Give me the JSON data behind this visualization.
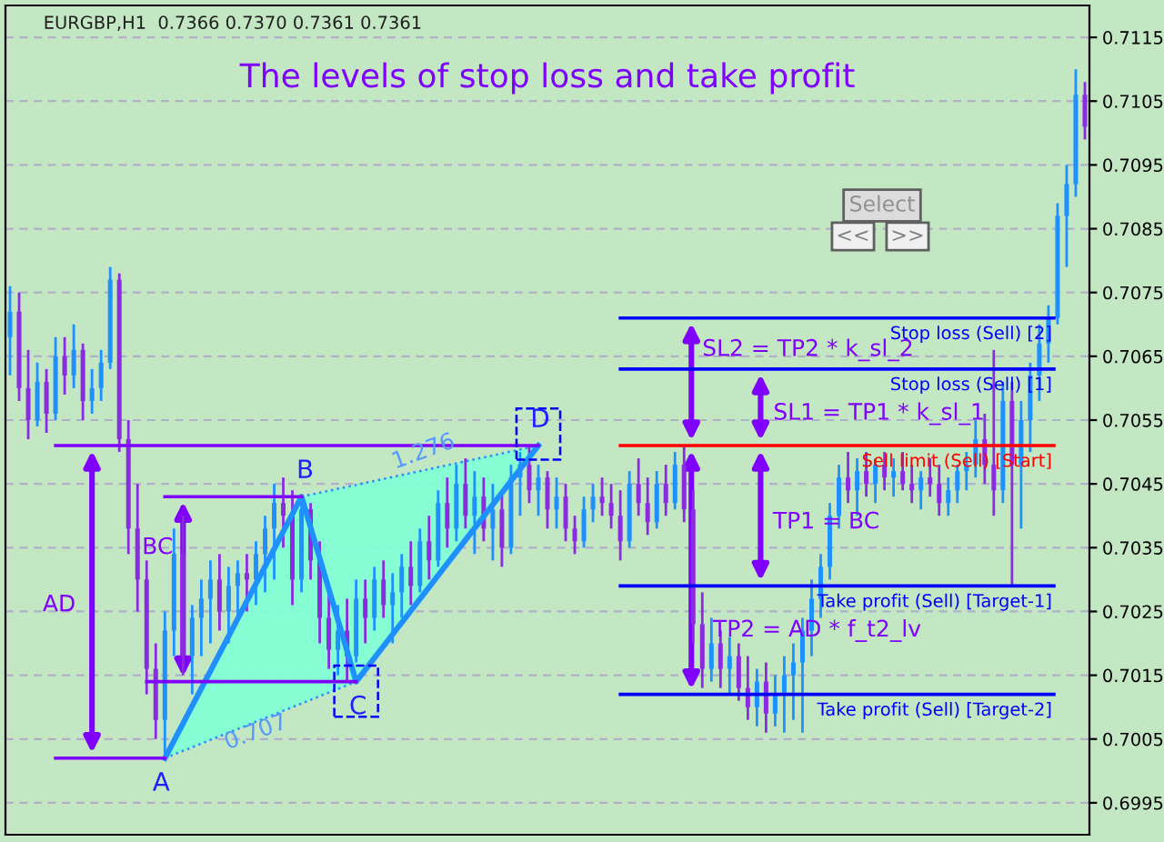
{
  "chart_data": {
    "type": "candlestick",
    "title": "The levels of stop loss and take profit",
    "categories": [
      null,
      null,
      null,
      null,
      null,
      null,
      null,
      null,
      null,
      null,
      null,
      null,
      null,
      null,
      null,
      null,
      null,
      null,
      null,
      null,
      null,
      null,
      null,
      null,
      null,
      null,
      null,
      null,
      null,
      null,
      null,
      null,
      null,
      null,
      null,
      null,
      null,
      null,
      null,
      null,
      null,
      null,
      null,
      null,
      null,
      null,
      null,
      null,
      null,
      null,
      null,
      null,
      null,
      null,
      null,
      null,
      null,
      null,
      null,
      null,
      null,
      null,
      null,
      null,
      null,
      null,
      null,
      null,
      null,
      null,
      null,
      null,
      null,
      null,
      null,
      null,
      null,
      null,
      null,
      null,
      null,
      null,
      null,
      null,
      null,
      null,
      null,
      null,
      null,
      null,
      null,
      null,
      null,
      null,
      null,
      null,
      null,
      null,
      null,
      null,
      null,
      null,
      null,
      null,
      null,
      null,
      null,
      null,
      null,
      null,
      null,
      null,
      null,
      null,
      null,
      null,
      null,
      null,
      null
    ],
    "ohlc": [
      [
        0.7068,
        0.7076,
        0.7062,
        0.7072
      ],
      [
        0.7072,
        0.7075,
        0.7058,
        0.706
      ],
      [
        0.706,
        0.7066,
        0.7052,
        0.7055
      ],
      [
        0.7055,
        0.7064,
        0.7054,
        0.7061
      ],
      [
        0.7061,
        0.7063,
        0.7053,
        0.7056
      ],
      [
        0.7056,
        0.7068,
        0.7055,
        0.7065
      ],
      [
        0.7065,
        0.7068,
        0.7059,
        0.7062
      ],
      [
        0.7062,
        0.707,
        0.706,
        0.7066
      ],
      [
        0.7066,
        0.7067,
        0.7055,
        0.7058
      ],
      [
        0.7058,
        0.7063,
        0.7056,
        0.706
      ],
      [
        0.706,
        0.7066,
        0.7058,
        0.7064
      ],
      [
        0.7064,
        0.7079,
        0.7063,
        0.7077
      ],
      [
        0.7077,
        0.7078,
        0.705,
        0.7052
      ],
      [
        0.7052,
        0.7055,
        0.7034,
        0.7038
      ],
      [
        0.7038,
        0.7045,
        0.7025,
        0.703
      ],
      [
        0.703,
        0.7033,
        0.7012,
        0.7016
      ],
      [
        0.7016,
        0.702,
        0.7005,
        0.7008
      ],
      [
        0.7008,
        0.7025,
        0.7002,
        0.7022
      ],
      [
        0.7022,
        0.7038,
        0.7018,
        0.7034
      ],
      [
        0.7034,
        0.704,
        0.7015,
        0.7018
      ],
      [
        0.7018,
        0.7026,
        0.7012,
        0.7024
      ],
      [
        0.7024,
        0.703,
        0.7018,
        0.7027
      ],
      [
        0.7027,
        0.7033,
        0.702,
        0.703
      ],
      [
        0.703,
        0.7034,
        0.7022,
        0.7025
      ],
      [
        0.7025,
        0.7032,
        0.702,
        0.7029
      ],
      [
        0.7029,
        0.7033,
        0.7024,
        0.7031
      ],
      [
        0.7031,
        0.7034,
        0.7025,
        0.703
      ],
      [
        0.703,
        0.7036,
        0.7026,
        0.7034
      ],
      [
        0.7034,
        0.704,
        0.7028,
        0.7038
      ],
      [
        0.7038,
        0.7045,
        0.703,
        0.7042
      ],
      [
        0.7042,
        0.7046,
        0.7035,
        0.704
      ],
      [
        0.704,
        0.7044,
        0.7026,
        0.703
      ],
      [
        0.703,
        0.7043,
        0.7028,
        0.7041
      ],
      [
        0.7041,
        0.7042,
        0.703,
        0.7033
      ],
      [
        0.7033,
        0.7036,
        0.702,
        0.7024
      ],
      [
        0.7024,
        0.7028,
        0.7016,
        0.7019
      ],
      [
        0.7019,
        0.7026,
        0.7015,
        0.7022
      ],
      [
        0.7022,
        0.7027,
        0.7014,
        0.7018
      ],
      [
        0.7018,
        0.703,
        0.7017,
        0.7027
      ],
      [
        0.7027,
        0.703,
        0.702,
        0.7024
      ],
      [
        0.7024,
        0.7032,
        0.7022,
        0.703
      ],
      [
        0.703,
        0.7033,
        0.7024,
        0.7026
      ],
      [
        0.7026,
        0.7031,
        0.702,
        0.7028
      ],
      [
        0.7028,
        0.7034,
        0.7024,
        0.7032
      ],
      [
        0.7032,
        0.7036,
        0.7026,
        0.7029
      ],
      [
        0.7029,
        0.7038,
        0.7028,
        0.7036
      ],
      [
        0.7036,
        0.704,
        0.703,
        0.7033
      ],
      [
        0.7033,
        0.7044,
        0.7032,
        0.7042
      ],
      [
        0.7042,
        0.7046,
        0.7035,
        0.7038
      ],
      [
        0.7038,
        0.7048,
        0.7036,
        0.7045
      ],
      [
        0.7045,
        0.7049,
        0.7038,
        0.704
      ],
      [
        0.704,
        0.7047,
        0.7034,
        0.7043
      ],
      [
        0.7043,
        0.7046,
        0.7036,
        0.7038
      ],
      [
        0.7038,
        0.7045,
        0.7033,
        0.7041
      ],
      [
        0.7041,
        0.7044,
        0.7032,
        0.7035
      ],
      [
        0.7035,
        0.7048,
        0.7034,
        0.7046
      ],
      [
        0.7046,
        0.705,
        0.704,
        0.7048
      ],
      [
        0.7048,
        0.7051,
        0.7042,
        0.7044
      ],
      [
        0.7044,
        0.7048,
        0.704,
        0.7046
      ],
      [
        0.7046,
        0.7047,
        0.7038,
        0.7041
      ],
      [
        0.7041,
        0.7046,
        0.7038,
        0.7043
      ],
      [
        0.7043,
        0.7045,
        0.7036,
        0.7038
      ],
      [
        0.7038,
        0.704,
        0.7034,
        0.7036
      ],
      [
        0.7036,
        0.7043,
        0.7035,
        0.7041
      ],
      [
        0.7041,
        0.7045,
        0.7039,
        0.7043
      ],
      [
        0.7043,
        0.7046,
        0.704,
        0.7042
      ],
      [
        0.7042,
        0.7045,
        0.7038,
        0.704
      ],
      [
        0.704,
        0.7044,
        0.7033,
        0.7036
      ],
      [
        0.7036,
        0.7047,
        0.7035,
        0.7045
      ],
      [
        0.7045,
        0.7049,
        0.704,
        0.7042
      ],
      [
        0.7042,
        0.7046,
        0.7037,
        0.7039
      ],
      [
        0.7039,
        0.7047,
        0.7038,
        0.7045
      ],
      [
        0.7045,
        0.7048,
        0.704,
        0.7042
      ],
      [
        0.7042,
        0.705,
        0.7041,
        0.7048
      ],
      [
        0.7048,
        0.7051,
        0.7039,
        0.7041
      ],
      [
        0.7041,
        0.7044,
        0.702,
        0.7023
      ],
      [
        0.7023,
        0.7028,
        0.7013,
        0.7016
      ],
      [
        0.7016,
        0.7024,
        0.7014,
        0.702
      ],
      [
        0.702,
        0.7022,
        0.7013,
        0.7016
      ],
      [
        0.7016,
        0.7021,
        0.7012,
        0.7018
      ],
      [
        0.7018,
        0.702,
        0.7011,
        0.7013
      ],
      [
        0.7013,
        0.7018,
        0.7008,
        0.701
      ],
      [
        0.701,
        0.7016,
        0.7007,
        0.7014
      ],
      [
        0.7014,
        0.7017,
        0.7006,
        0.7009
      ],
      [
        0.7009,
        0.7015,
        0.7007,
        0.7012
      ],
      [
        0.7012,
        0.7018,
        0.7006,
        0.7015
      ],
      [
        0.7015,
        0.702,
        0.7008,
        0.7017
      ],
      [
        0.7017,
        0.7024,
        0.7006,
        0.7022
      ],
      [
        0.7022,
        0.703,
        0.7018,
        0.7027
      ],
      [
        0.7027,
        0.7034,
        0.7024,
        0.7032
      ],
      [
        0.7032,
        0.7042,
        0.703,
        0.704
      ],
      [
        0.704,
        0.7048,
        0.7038,
        0.7046
      ],
      [
        0.7046,
        0.705,
        0.7042,
        0.7044
      ],
      [
        0.7044,
        0.7049,
        0.704,
        0.7047
      ],
      [
        0.7047,
        0.705,
        0.7043,
        0.7045
      ],
      [
        0.7045,
        0.7049,
        0.7042,
        0.7048
      ],
      [
        0.7048,
        0.705,
        0.7044,
        0.7046
      ],
      [
        0.7046,
        0.7049,
        0.7043,
        0.7047
      ],
      [
        0.7047,
        0.705,
        0.7044,
        0.7045
      ],
      [
        0.7045,
        0.7048,
        0.7042,
        0.7044
      ],
      [
        0.7044,
        0.7047,
        0.7041,
        0.7046
      ],
      [
        0.7046,
        0.7049,
        0.7043,
        0.7045
      ],
      [
        0.7045,
        0.7048,
        0.704,
        0.7042
      ],
      [
        0.7042,
        0.7046,
        0.704,
        0.7044
      ],
      [
        0.7044,
        0.7048,
        0.7042,
        0.7047
      ],
      [
        0.7047,
        0.705,
        0.7044,
        0.7048
      ],
      [
        0.7048,
        0.7055,
        0.7046,
        0.7052
      ],
      [
        0.7052,
        0.7056,
        0.7045,
        0.7048
      ],
      [
        0.7048,
        0.7066,
        0.704,
        0.7044
      ],
      [
        0.7044,
        0.7061,
        0.7042,
        0.7058
      ],
      [
        0.7058,
        0.7061,
        0.7029,
        0.7048
      ],
      [
        0.7048,
        0.7058,
        0.7038,
        0.7055
      ],
      [
        0.7055,
        0.7064,
        0.705,
        0.7062
      ],
      [
        0.7062,
        0.707,
        0.7058,
        0.7067
      ],
      [
        0.7067,
        0.7073,
        0.7064,
        0.7071
      ],
      [
        0.7071,
        0.7089,
        0.707,
        0.7087
      ],
      [
        0.7087,
        0.7095,
        0.7079,
        0.7092
      ],
      [
        0.7092,
        0.711,
        0.709,
        0.7106
      ],
      [
        0.7106,
        0.7108,
        0.7099,
        0.7101
      ]
    ],
    "series": [
      {
        "type": "line",
        "color": "#1e90ff",
        "values": [
          null,
          null,
          null,
          null,
          null,
          null,
          null,
          null,
          null,
          null,
          null,
          null,
          null,
          null,
          null,
          null,
          null,
          0.7002,
          null,
          null,
          null,
          null,
          null,
          null,
          null,
          null,
          null,
          null,
          null,
          null,
          null,
          null,
          0.7043,
          null,
          null,
          null,
          null,
          null,
          0.7014,
          null,
          null,
          null,
          null,
          null,
          null,
          null,
          null,
          null,
          null,
          null,
          null,
          null,
          null,
          null,
          null,
          null,
          null,
          null,
          0.7051,
          null,
          null,
          null,
          null,
          null,
          null,
          null,
          null,
          null,
          null,
          null,
          null,
          null,
          null,
          null,
          null,
          null,
          null,
          null,
          null,
          null,
          null,
          null,
          null,
          null,
          null,
          null,
          null,
          null,
          null,
          null,
          null,
          null,
          null,
          null,
          null,
          null,
          null,
          null,
          null,
          null,
          null,
          null,
          null,
          null,
          null,
          null,
          null,
          null,
          null,
          null,
          null,
          null,
          null,
          null,
          null,
          null,
          null,
          null,
          null
        ]
      },
      {
        "type": "line",
        "color": "#8000ff",
        "values": [
          null,
          null,
          null,
          null,
          null,
          0.7051,
          null,
          null,
          null,
          null,
          null,
          null,
          null,
          null,
          null,
          null,
          null,
          null,
          null,
          null,
          null,
          null,
          null,
          null,
          null,
          null,
          null,
          null,
          null,
          null,
          null,
          null,
          null,
          null,
          null,
          null,
          null,
          null,
          null,
          null,
          null,
          null,
          null,
          null,
          null,
          null,
          null,
          null,
          null,
          null,
          null,
          null,
          null,
          null,
          null,
          null,
          null,
          null,
          0.7051,
          null,
          null,
          null,
          null,
          null,
          null,
          null,
          null,
          null,
          null,
          null,
          null,
          null,
          null,
          null,
          null,
          null,
          null,
          null,
          null,
          null,
          null,
          null,
          null,
          null,
          null,
          null,
          null,
          null,
          null,
          null,
          null,
          null,
          null,
          null,
          null,
          null,
          null,
          null,
          null,
          null,
          null,
          null,
          null,
          null,
          null,
          null,
          null,
          null,
          null,
          null,
          null,
          null,
          null,
          null,
          null,
          null,
          null,
          null,
          null
        ]
      },
      {
        "type": "line",
        "color": "#8000ff",
        "values": [
          null,
          null,
          null,
          null,
          null,
          0.7002,
          null,
          null,
          null,
          null,
          null,
          null,
          null,
          null,
          null,
          null,
          null,
          0.7002,
          null,
          null,
          null,
          null,
          null,
          null,
          null,
          null,
          null,
          null,
          null,
          null,
          null,
          null,
          null,
          null,
          null,
          null,
          null,
          null,
          null,
          null,
          null,
          null,
          null,
          null,
          null,
          null,
          null,
          null,
          null,
          null,
          null,
          null,
          null,
          null,
          null,
          null,
          null,
          null,
          null,
          null,
          null,
          null,
          null,
          null,
          null,
          null,
          null,
          null,
          null,
          null,
          null,
          null,
          null,
          null,
          null,
          null,
          null,
          null,
          null,
          null,
          null,
          null,
          null,
          null,
          null,
          null,
          null,
          null,
          null,
          null,
          null,
          null,
          null,
          null,
          null,
          null,
          null,
          null,
          null,
          null,
          null,
          null,
          null,
          null,
          null,
          null,
          null,
          null,
          null,
          null,
          null,
          null,
          null,
          null,
          null,
          null,
          null,
          null,
          null
        ]
      },
      {
        "type": "line",
        "color": "#8000ff",
        "values": [
          null,
          null,
          null,
          null,
          null,
          null,
          null,
          null,
          null,
          null,
          null,
          null,
          null,
          null,
          null,
          null,
          null,
          0.7043,
          null,
          null,
          null,
          null,
          null,
          null,
          null,
          null,
          null,
          null,
          null,
          null,
          null,
          null,
          0.7043,
          null,
          null,
          null,
          null,
          null,
          null,
          null,
          null,
          null,
          null,
          null,
          null,
          null,
          null,
          null,
          null,
          null,
          null,
          null,
          null,
          null,
          null,
          null,
          null,
          null,
          null,
          null,
          null,
          null,
          null,
          null,
          null,
          null,
          null,
          null,
          null,
          null,
          null,
          null,
          null,
          null,
          null,
          null,
          null,
          null,
          null,
          null,
          null,
          null,
          null,
          null,
          null,
          null,
          null,
          null,
          null,
          null,
          null,
          null,
          null,
          null,
          null,
          null,
          null,
          null,
          null,
          null,
          null,
          null,
          null,
          null,
          null,
          null,
          null,
          null,
          null,
          null,
          null,
          null,
          null,
          null,
          null,
          null,
          null,
          null,
          null
        ]
      },
      {
        "type": "line",
        "color": "#8000ff",
        "values": [
          null,
          null,
          null,
          null,
          null,
          null,
          null,
          null,
          null,
          null,
          null,
          null,
          null,
          null,
          null,
          0.7014,
          null,
          null,
          null,
          null,
          null,
          null,
          null,
          null,
          null,
          null,
          null,
          null,
          null,
          null,
          null,
          null,
          null,
          null,
          null,
          null,
          null,
          null,
          0.7014,
          null,
          null,
          null,
          null,
          null,
          null,
          null,
          null,
          null,
          null,
          null,
          null,
          null,
          null,
          null,
          null,
          null,
          null,
          null,
          null,
          null,
          null,
          null,
          null,
          null,
          null,
          null,
          null,
          null,
          null,
          null,
          null,
          null,
          null,
          null,
          null,
          null,
          null,
          null,
          null,
          null,
          null,
          null,
          null,
          null,
          null,
          null,
          null,
          null,
          null,
          null,
          null,
          null,
          null,
          null,
          null,
          null,
          null,
          null,
          null,
          null,
          null,
          null,
          null,
          null,
          null,
          null,
          null,
          null,
          null,
          null,
          null,
          null,
          null,
          null,
          null,
          null,
          null,
          null,
          null
        ]
      }
    ],
    "ref_lines": [
      {
        "axis": "y",
        "value": 0.7071,
        "label": "Stop loss (Sell) [2]",
        "color": "#0000ff"
      },
      {
        "axis": "y",
        "value": 0.7063,
        "label": "Stop loss (Sell) [1]",
        "color": "#0000ff"
      },
      {
        "axis": "y",
        "value": 0.7051,
        "label": "Sell limit (Sell) [Start]",
        "color": "#ff0000"
      },
      {
        "axis": "y",
        "value": 0.7029,
        "label": "Take profit (Sell) [Target-1]",
        "color": "#0000ff"
      },
      {
        "axis": "y",
        "value": 0.7012,
        "label": "Take profit (Sell) [Target-2]",
        "color": "#0000ff"
      }
    ],
    "annotations": [
      "EURGBP,H1  0.7366 0.7370 0.7361 0.7361",
      "Select",
      "<<",
      ">>",
      "A",
      "B",
      "C",
      "D",
      "AD",
      "BC",
      "1.276",
      "0.707",
      "SL2 = TP2 * k_sl_2",
      "SL1 = TP1 * k_sl_1",
      "TP1 = BC",
      "TP2 = AD * f_t2_lv"
    ],
    "ylim": [
      0.699,
      0.712
    ],
    "yticks": [
      0.6995,
      0.7005,
      0.7015,
      0.7025,
      0.7035,
      0.7045,
      0.7055,
      0.7065,
      0.7075,
      0.7085,
      0.7095,
      0.7105,
      0.7115
    ],
    "tick_labels": "y",
    "grid": true,
    "legend": false
  }
}
